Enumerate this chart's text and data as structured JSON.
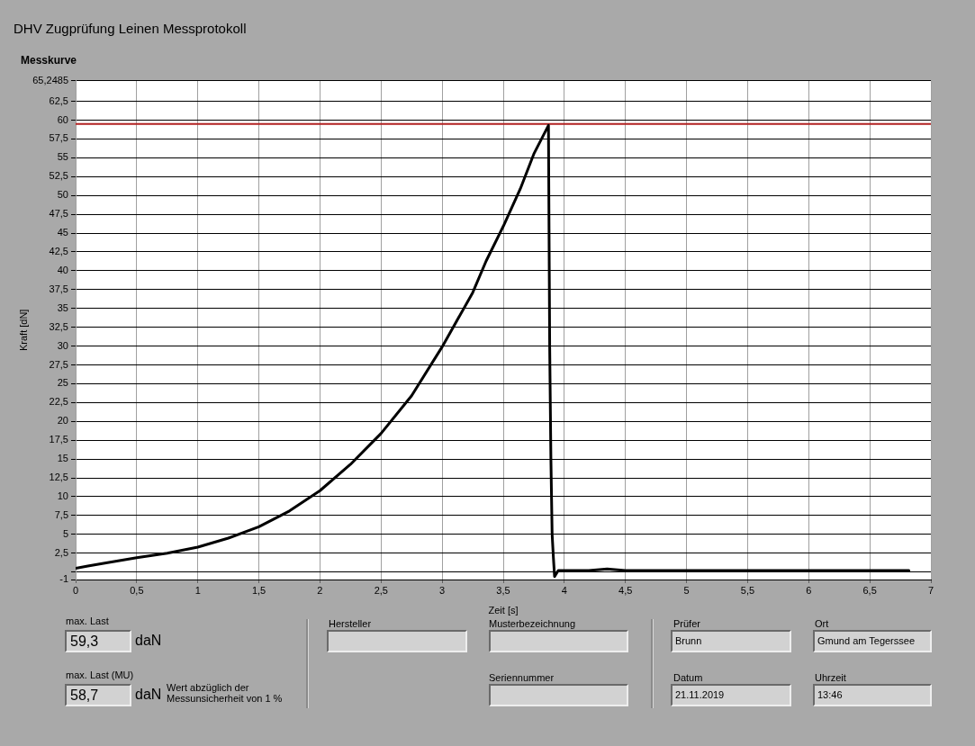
{
  "chart_data": [
    {
      "type": "line",
      "title": "DHV Zugprüfung Leinen Messprotokoll",
      "subtitle": "Messkurve",
      "xlabel": "Zeit [s]",
      "ylabel": "Kraft [dN]",
      "x": [
        0,
        0.1,
        0.25,
        0.5,
        0.75,
        1,
        1.25,
        1.5,
        1.75,
        2,
        2.25,
        2.5,
        2.75,
        3,
        3.25,
        3.36,
        3.5,
        3.64,
        3.75,
        3.87,
        3.88,
        3.89,
        3.9,
        3.91,
        3.92,
        3.95,
        4.2,
        4.35,
        4.5,
        5,
        5.5,
        6,
        6.5,
        6.82
      ],
      "series": [
        {
          "color": "#000000",
          "values": [
            0.5,
            0.8,
            1.2,
            1.9,
            2.5,
            3.3,
            4.5,
            6.0,
            8.1,
            10.8,
            14.3,
            18.4,
            23.4,
            29.9,
            37.1,
            41.3,
            45.9,
            50.9,
            55.5,
            59.3,
            30,
            15,
            5,
            2,
            -0.6,
            0.2,
            0.2,
            0.4,
            0.2,
            0.2,
            0.2,
            0.2,
            0.2,
            0.2
          ]
        }
      ],
      "xlim": [
        0,
        7
      ],
      "xticks": [
        0,
        {
          "value": 0.5,
          "label": "0,5"
        },
        1,
        {
          "value": 1.5,
          "label": "1,5"
        },
        2,
        {
          "value": 2.5,
          "label": "2,5"
        },
        3,
        {
          "value": 3.5,
          "label": "3,5"
        },
        4,
        {
          "value": 4.5,
          "label": "4,5"
        },
        5,
        {
          "value": 5.5,
          "label": "5,5"
        },
        6,
        {
          "value": 6.5,
          "label": "6,5"
        },
        7
      ],
      "ylim": [
        -1,
        65.2485
      ],
      "yticks": [
        -1,
        {
          "value": 0,
          "label": null
        },
        {
          "value": 2.5,
          "label": "2,5"
        },
        5,
        {
          "value": 7.5,
          "label": "7,5"
        },
        10,
        {
          "value": 12.5,
          "label": "12,5"
        },
        15,
        {
          "value": 17.5,
          "label": "17,5"
        },
        20,
        {
          "value": 22.5,
          "label": "22,5"
        },
        25,
        {
          "value": 27.5,
          "label": "27,5"
        },
        30,
        {
          "value": 32.5,
          "label": "32,5"
        },
        35,
        {
          "value": 37.5,
          "label": "37,5"
        },
        40,
        {
          "value": 42.5,
          "label": "42,5"
        },
        45,
        {
          "value": 47.5,
          "label": "47,5"
        },
        50,
        {
          "value": 52.5,
          "label": "52,5"
        },
        55,
        {
          "value": 57.5,
          "label": "57,5"
        },
        60,
        {
          "value": 62.5,
          "label": "62,5"
        },
        {
          "value": 65.2485,
          "label": "65,2485"
        }
      ],
      "ref_lines": [
        {
          "axis": "y",
          "value": 59.5,
          "color": "#b22222"
        }
      ],
      "grid": true
    },
    {
      "type": "other",
      "annotations": [
        "max. Last",
        "59,3",
        "daN",
        "max. Last (MU)",
        "58,7",
        "daN",
        "Wert abzüglich der Messunsicherheit von 1 %",
        "Hersteller",
        "Musterbezeichnung",
        "Seriennummer",
        "Prüfer",
        "Brunn",
        "Ort",
        "Gmund am Tegerssee",
        "Datum",
        "21.11.2019",
        "Uhrzeit",
        "13:46"
      ]
    }
  ]
}
